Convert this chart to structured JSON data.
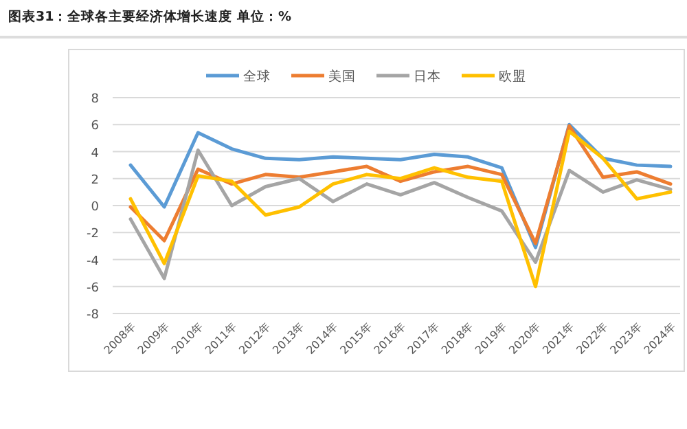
{
  "chart_data": {
    "type": "line",
    "title": "图表31：全球各主要经济体增长速度 单位：%",
    "categories": [
      "2008年",
      "2009年",
      "2010年",
      "2011年",
      "2012年",
      "2013年",
      "2014年",
      "2015年",
      "2016年",
      "2017年",
      "2018年",
      "2019年",
      "2020年",
      "2021年",
      "2022年",
      "2023年",
      "2024年"
    ],
    "series": [
      {
        "name": "全球",
        "color": "#5b9bd5",
        "values": [
          3.0,
          -0.1,
          5.4,
          4.2,
          3.5,
          3.4,
          3.6,
          3.5,
          3.4,
          3.8,
          3.6,
          2.8,
          -3.1,
          6.0,
          3.5,
          3.0,
          2.9
        ]
      },
      {
        "name": "美国",
        "color": "#ed7d31",
        "values": [
          -0.1,
          -2.6,
          2.7,
          1.6,
          2.3,
          2.1,
          2.5,
          2.9,
          1.8,
          2.5,
          2.9,
          2.3,
          -2.8,
          5.9,
          2.1,
          2.5,
          1.6
        ]
      },
      {
        "name": "日本",
        "color": "#a5a5a5",
        "values": [
          -1.0,
          -5.4,
          4.1,
          0.0,
          1.4,
          2.0,
          0.3,
          1.6,
          0.8,
          1.7,
          0.6,
          -0.4,
          -4.2,
          2.6,
          1.0,
          1.9,
          1.2
        ]
      },
      {
        "name": "欧盟",
        "color": "#ffc000",
        "values": [
          0.5,
          -4.3,
          2.2,
          1.8,
          -0.7,
          -0.1,
          1.6,
          2.3,
          2.0,
          2.8,
          2.1,
          1.8,
          -6.0,
          5.5,
          3.5,
          0.5,
          1.0
        ]
      }
    ],
    "ylim": [
      -8,
      8
    ],
    "yticks": [
      -8,
      -6,
      -4,
      -2,
      0,
      2,
      4,
      6,
      8
    ],
    "grid": "y",
    "legend": "top"
  }
}
